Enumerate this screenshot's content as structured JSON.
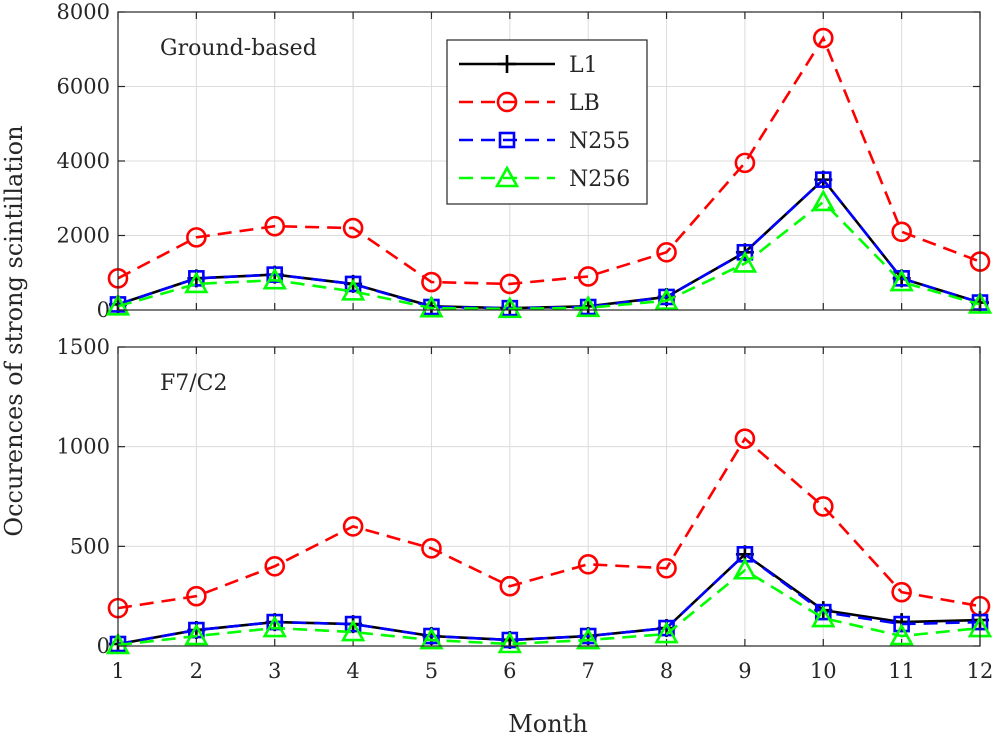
{
  "chart_data": [
    {
      "type": "line",
      "panel_label": "Ground-based",
      "x": [
        1,
        2,
        3,
        4,
        5,
        6,
        7,
        8,
        9,
        10,
        11,
        12
      ],
      "ylim": [
        0,
        8000
      ],
      "yticks": [
        0,
        2000,
        4000,
        6000,
        8000
      ],
      "xticks": [
        1,
        2,
        3,
        4,
        5,
        6,
        7,
        8,
        9,
        10,
        11,
        12
      ],
      "grid": true,
      "legend": "top-center",
      "series": [
        {
          "name": "L1",
          "color": "#000000",
          "marker": "plus",
          "dash": "solid",
          "values": [
            150,
            850,
            950,
            700,
            100,
            50,
            100,
            350,
            1550,
            3500,
            850,
            200
          ]
        },
        {
          "name": "LB",
          "color": "#ff0000",
          "marker": "circle",
          "dash": "dashed",
          "values": [
            850,
            1950,
            2250,
            2200,
            750,
            700,
            900,
            1550,
            3950,
            7300,
            2100,
            1300
          ]
        },
        {
          "name": "N255",
          "color": "#0000ff",
          "marker": "square",
          "dash": "dashed",
          "values": [
            150,
            850,
            950,
            700,
            80,
            50,
            80,
            350,
            1550,
            3500,
            850,
            200
          ]
        },
        {
          "name": "N256",
          "color": "#00ff00",
          "marker": "triangle",
          "dash": "dashed",
          "values": [
            100,
            700,
            800,
            500,
            50,
            30,
            60,
            250,
            1250,
            2900,
            750,
            150
          ]
        }
      ]
    },
    {
      "type": "line",
      "panel_label": "F7/C2",
      "x": [
        1,
        2,
        3,
        4,
        5,
        6,
        7,
        8,
        9,
        10,
        11,
        12
      ],
      "ylim": [
        0,
        1500
      ],
      "yticks": [
        0,
        500,
        1000,
        1500
      ],
      "xticks": [
        1,
        2,
        3,
        4,
        5,
        6,
        7,
        8,
        9,
        10,
        11,
        12
      ],
      "grid": true,
      "series": [
        {
          "name": "L1",
          "color": "#000000",
          "marker": "plus",
          "dash": "solid",
          "values": [
            10,
            80,
            120,
            110,
            50,
            30,
            50,
            90,
            460,
            180,
            120,
            130
          ]
        },
        {
          "name": "LB",
          "color": "#ff0000",
          "marker": "circle",
          "dash": "dashed",
          "values": [
            190,
            250,
            400,
            600,
            490,
            300,
            410,
            390,
            1040,
            700,
            270,
            200
          ]
        },
        {
          "name": "N255",
          "color": "#0000ff",
          "marker": "square",
          "dash": "dashed",
          "values": [
            10,
            80,
            120,
            110,
            50,
            30,
            50,
            90,
            460,
            170,
            110,
            120
          ]
        },
        {
          "name": "N256",
          "color": "#00ff00",
          "marker": "triangle",
          "dash": "dashed",
          "values": [
            5,
            50,
            90,
            70,
            30,
            10,
            30,
            60,
            380,
            140,
            50,
            90
          ]
        }
      ]
    }
  ],
  "xlabel": "Month",
  "ylabel": "Occurences of strong scintillation"
}
